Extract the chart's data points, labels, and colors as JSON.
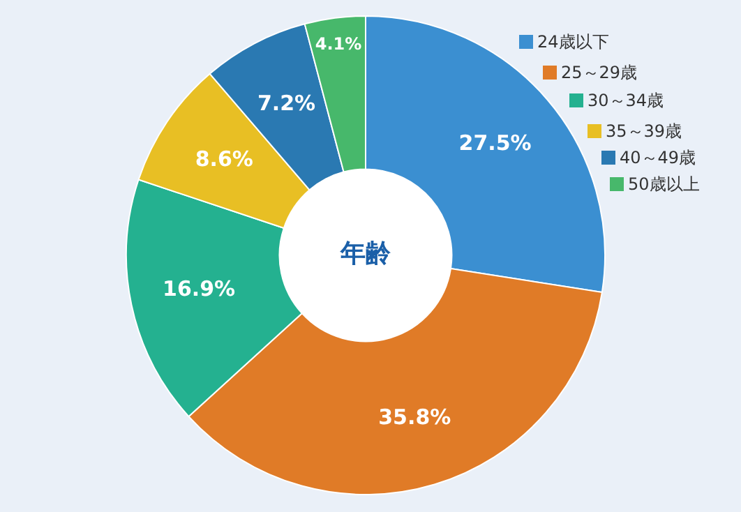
{
  "chart_data": {
    "type": "donut",
    "title": "年齢",
    "categories": [
      "24歳以下",
      "25～29歳",
      "30～34歳",
      "35～39歳",
      "40～49歳",
      "50歳以上"
    ],
    "values": [
      27.5,
      35.8,
      16.9,
      8.6,
      7.2,
      4.1
    ],
    "value_labels": [
      "27.5%",
      "35.8%",
      "16.9%",
      "8.6%",
      "7.2%",
      "4.1%"
    ],
    "colors": [
      "#3b8fd1",
      "#e07b27",
      "#24b190",
      "#e8bf24",
      "#2a79b2",
      "#47b86b"
    ],
    "legend": "top right"
  }
}
